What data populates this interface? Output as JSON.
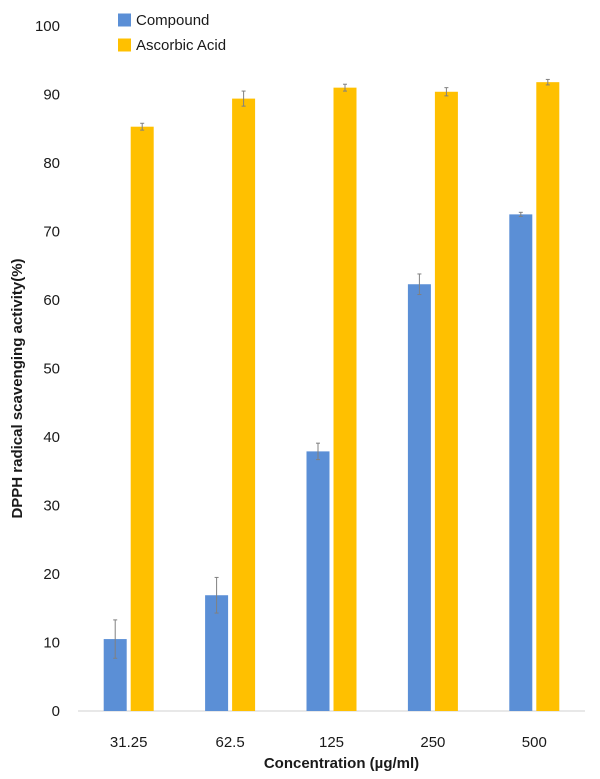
{
  "chart_data": {
    "type": "bar",
    "categories": [
      "31.25",
      "62.5",
      "125",
      "250",
      "500"
    ],
    "series": [
      {
        "name": "Compound",
        "color": "#5B8FD6",
        "values": [
          10.5,
          16.9,
          37.9,
          62.3,
          72.5
        ],
        "errors": [
          2.8,
          2.6,
          1.2,
          1.5,
          0.3
        ]
      },
      {
        "name": "Ascorbic Acid",
        "color": "#FFC000",
        "values": [
          85.3,
          89.4,
          91.0,
          90.4,
          91.8
        ],
        "errors": [
          0.5,
          1.1,
          0.5,
          0.6,
          0.4
        ]
      }
    ],
    "xlabel": "Concentration (µg/ml)",
    "ylabel": "DPPH radical scavenging activity(%)",
    "ylim": [
      0,
      100
    ],
    "yticks": [
      0,
      10,
      20,
      30,
      40,
      50,
      60,
      70,
      80,
      90,
      100
    ],
    "grid": false,
    "legend_position": "top-left"
  }
}
